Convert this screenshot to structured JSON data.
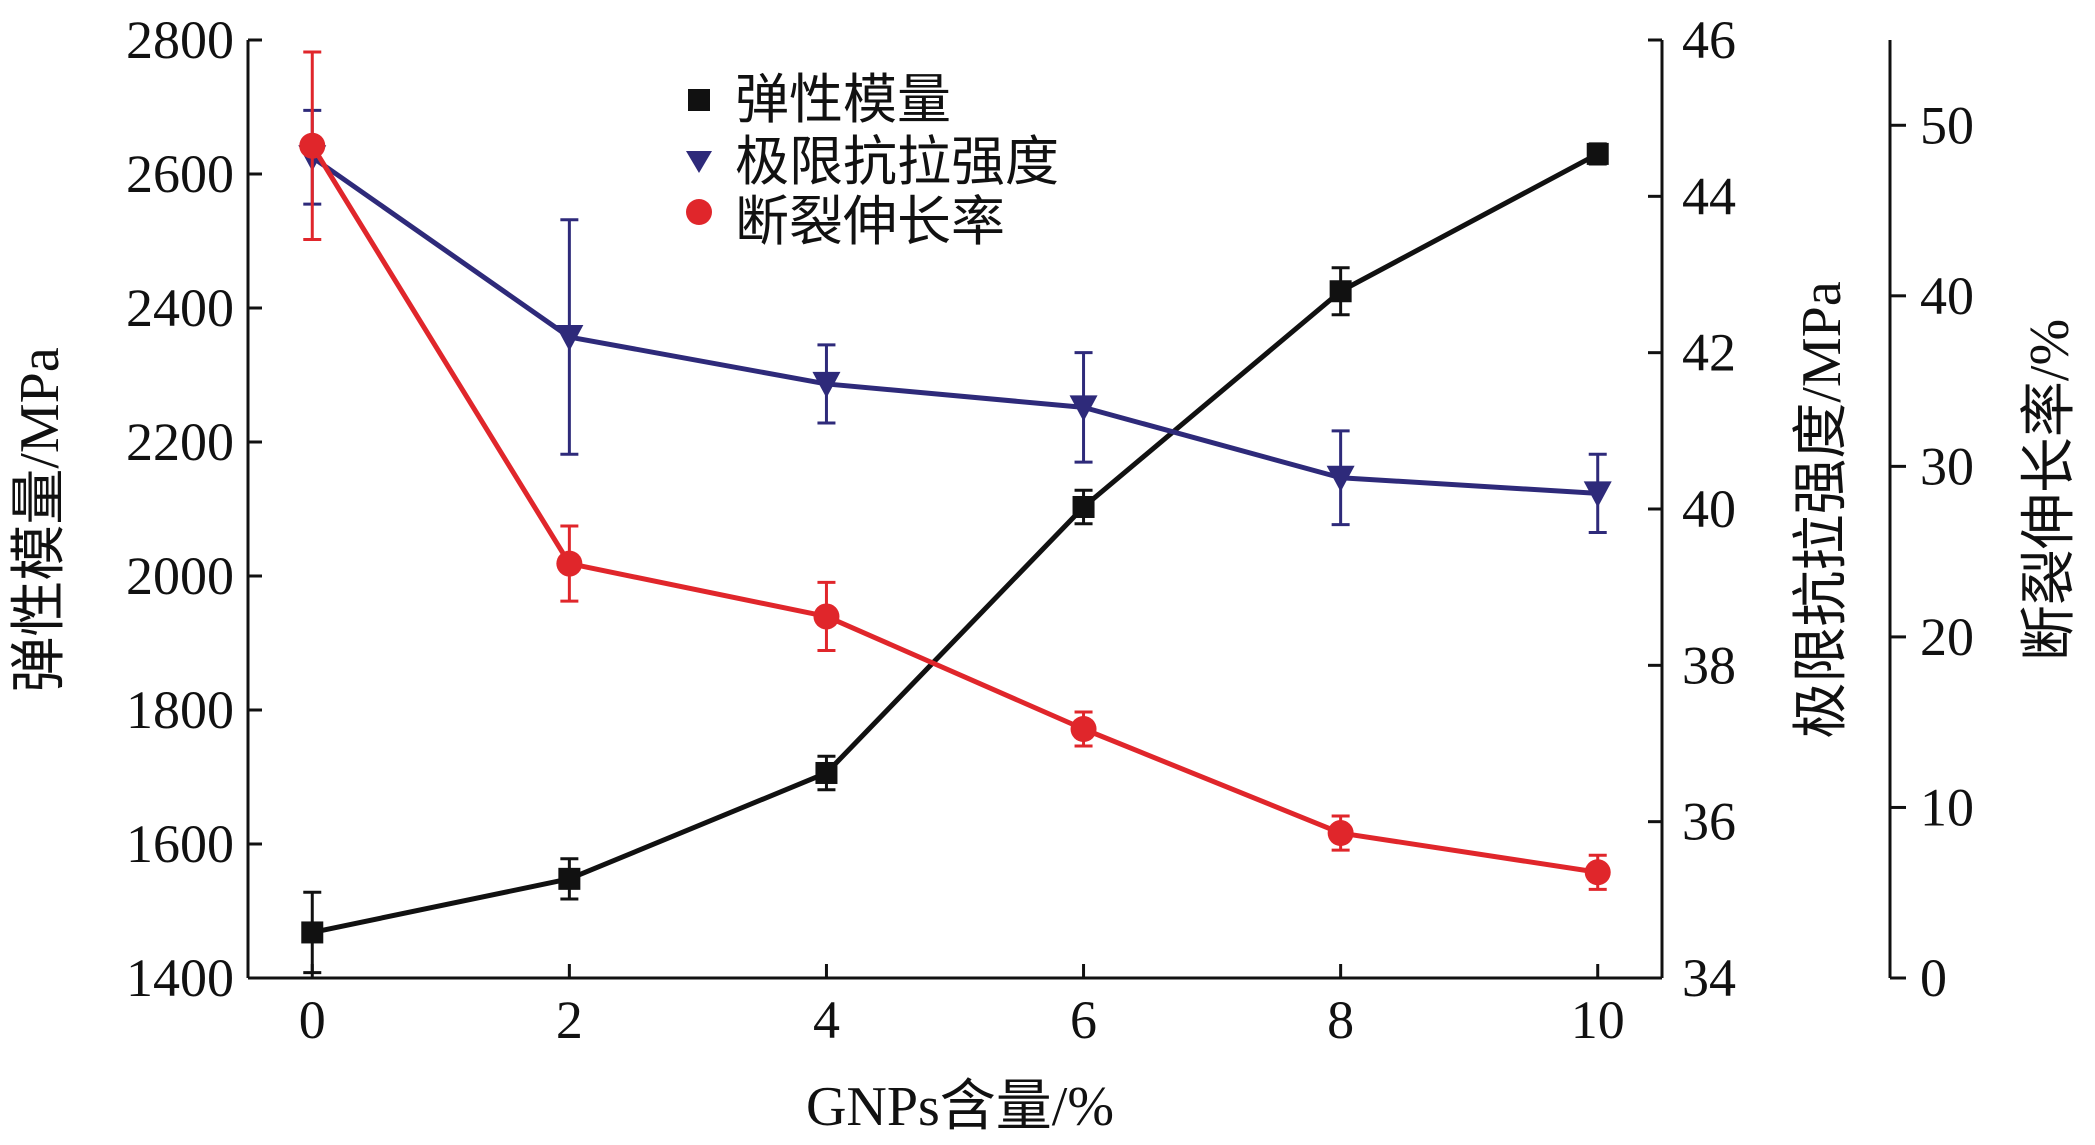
{
  "chart_data": {
    "type": "line",
    "x": [
      0,
      2,
      4,
      6,
      8,
      10
    ],
    "xlabel": "GNPs含量/%",
    "xlim": [
      -0.5,
      10.5
    ],
    "xticks": [
      "0",
      "2",
      "4",
      "6",
      "8",
      "10"
    ],
    "axes": {
      "left": {
        "label": "弹性模量/MPa",
        "lim": [
          1400,
          2800
        ],
        "ticks": [
          "1400",
          "1600",
          "1800",
          "2000",
          "2200",
          "2400",
          "2600",
          "2800"
        ]
      },
      "right1": {
        "label": "极限抗拉强度/MPa",
        "lim": [
          34,
          46
        ],
        "ticks": [
          "34",
          "36",
          "38",
          "40",
          "42",
          "44",
          "46"
        ]
      },
      "right2": {
        "label": "断裂伸长率/%",
        "lim": [
          0,
          55
        ],
        "ticks": [
          "0",
          "10",
          "20",
          "30",
          "40",
          "50"
        ]
      }
    },
    "series": [
      {
        "name": "弹性模量",
        "axis": "left",
        "marker": "square",
        "color": "#111111",
        "values": [
          1468,
          1548,
          1706,
          2103,
          2425,
          2630
        ],
        "errors": [
          60,
          30,
          25,
          25,
          35,
          15
        ]
      },
      {
        "name": "极限抗拉强度",
        "axis": "right1",
        "marker": "triangle-down",
        "color": "#2e2a7a",
        "values": [
          44.5,
          42.2,
          41.6,
          41.3,
          40.4,
          40.2
        ],
        "errors": [
          0.6,
          1.5,
          0.5,
          0.7,
          0.6,
          0.5
        ]
      },
      {
        "name": "断裂伸长率",
        "axis": "right2",
        "marker": "circle",
        "color": "#e0262b",
        "values": [
          48.8,
          24.3,
          21.2,
          14.6,
          8.5,
          6.2
        ],
        "errors": [
          5.5,
          2.2,
          2.0,
          1.0,
          1.0,
          1.0
        ]
      }
    ],
    "legend_position": "top-center",
    "grid": false
  }
}
